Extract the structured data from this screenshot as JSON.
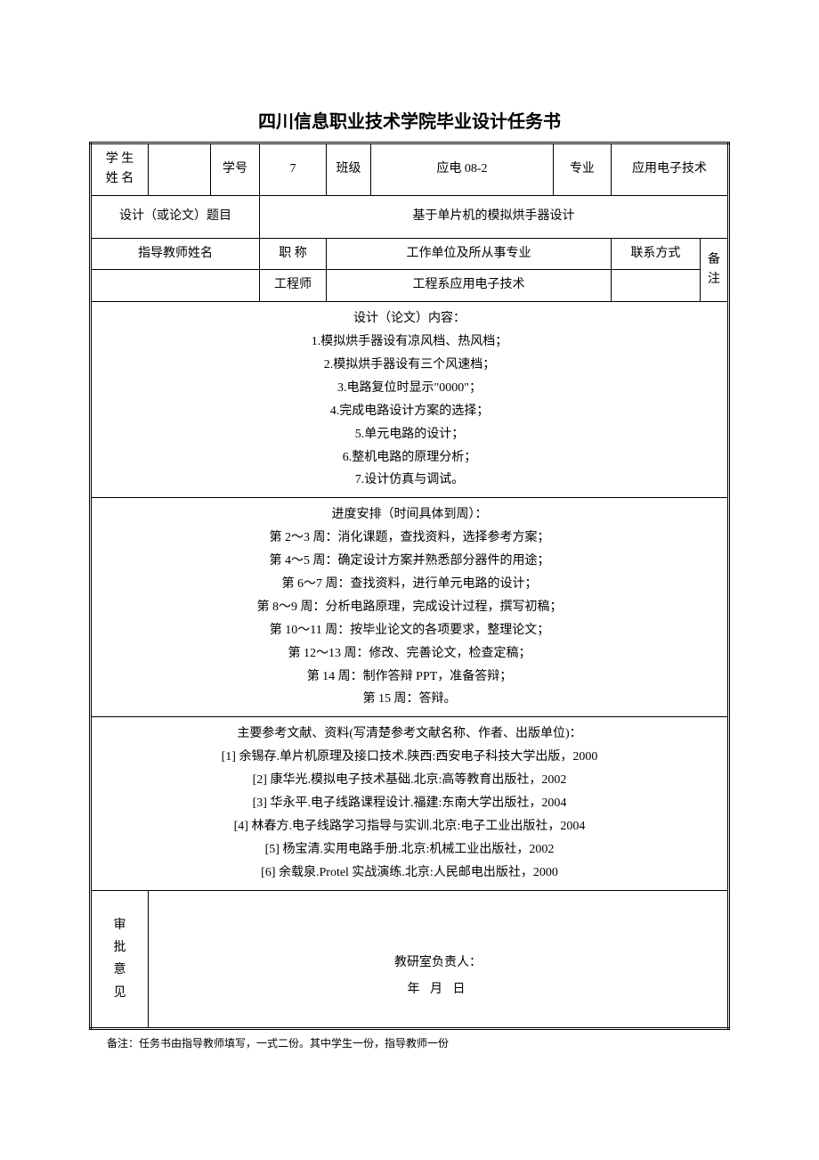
{
  "title": "四川信息职业技术学院毕业设计任务书",
  "header_row": {
    "student_name_label": "学 生\n姓 名",
    "student_name_value": "",
    "student_id_label": "学号",
    "student_id_value": "7",
    "class_label": "班级",
    "class_value": "应电 08-2",
    "major_label": "专业",
    "major_value": "应用电子技术"
  },
  "topic_row": {
    "topic_label": "设计（或论文）题目",
    "topic_value": "基于单片机的模拟烘手器设计"
  },
  "advisor_header": {
    "advisor_name_label": "指导教师姓名",
    "title_label": "职  称",
    "unit_label": "工作单位及所从事专业",
    "contact_label": "联系方式",
    "remark_label": "备注"
  },
  "advisor_row": {
    "advisor_name": "",
    "title_value": "工程师",
    "unit_value": "工程系应用电子技术",
    "contact_value": "",
    "remark_value": ""
  },
  "design_content": {
    "heading": "设计（论文）内容：",
    "items": [
      "1.模拟烘手器设有凉风档、热风档；",
      "2.模拟烘手器设有三个风速档；",
      "3.电路复位时显示\"0000\"；",
      "4.完成电路设计方案的选择；",
      "5.单元电路的设计；",
      "6.整机电路的原理分析；",
      "7.设计仿真与调试。"
    ]
  },
  "schedule": {
    "heading": "进度安排（时间具体到周）：",
    "items": [
      "第 2～3 周：消化课题，查找资料，选择参考方案；",
      "第 4～5 周：确定设计方案并熟悉部分器件的用途；",
      "第 6～7 周：查找资料，进行单元电路的设计；",
      "第 8～9 周：分析电路原理，完成设计过程，撰写初稿；",
      "第 10～11 周：按毕业论文的各项要求，整理论文；",
      "第 12～13 周：修改、完善论文，检查定稿；",
      "第 14 周：制作答辩 PPT，准备答辩；",
      "第 15 周：答辩。"
    ]
  },
  "references": {
    "heading": "主要参考文献、资料(写清楚参考文献名称、作者、出版单位)：",
    "items": [
      "[1] 余锡存.单片机原理及接口技术.陕西:西安电子科技大学出版，2000",
      "[2] 康华光.模拟电子技术基础.北京:高等教育出版社，2002",
      "[3] 华永平.电子线路课程设计.福建:东南大学出版社，2004",
      "[4] 林春方.电子线路学习指导与实训.北京:电子工业出版社，2004",
      "[5] 杨宝清.实用电路手册.北京:机械工业出版社，2002",
      "[6] 余载泉.Protel 实战演练.北京:人民邮电出版社，2000"
    ]
  },
  "approval": {
    "label": "审\n批\n意\n见",
    "responsible": "教研室负责人：",
    "date": "年    月    日"
  },
  "footnote": "备注：任务书由指导教师填写，一式二份。其中学生一份，指导教师一份"
}
